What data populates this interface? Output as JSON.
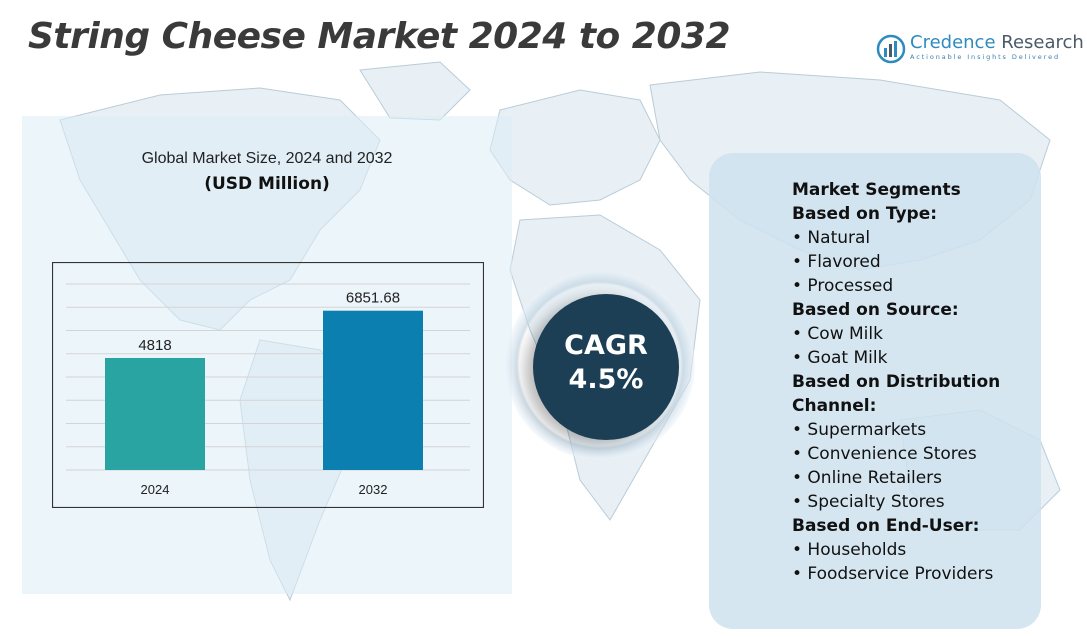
{
  "header": {
    "title": "String Cheese Market 2024 to 2032",
    "logo": {
      "name_part1": "Credence",
      "name_part2": " Research",
      "tagline": "Actionable Insights Delivered"
    }
  },
  "chart_data": {
    "type": "bar",
    "title": "Global Market Size, 2024 and 2032",
    "subtitle": "(USD Million)",
    "categories": [
      "2024",
      "2032"
    ],
    "values": [
      4818,
      6851.68
    ],
    "value_labels": [
      "4818",
      "6851.68"
    ],
    "bar_colors": [
      "#2aa3a3",
      "#0a7fb0"
    ],
    "ylim": [
      0,
      8000
    ],
    "grid": true,
    "xlabel": "",
    "ylabel": ""
  },
  "cagr": {
    "label": "CAGR",
    "value": "4.5%"
  },
  "segments": {
    "title": "Market Segments",
    "groups": [
      {
        "heading": "Based on Type:",
        "items": [
          "• Natural",
          "• Flavored",
          "• Processed"
        ]
      },
      {
        "heading": "Based on Source:",
        "items": [
          "• Cow Milk",
          "• Goat Milk"
        ]
      },
      {
        "heading": "Based on Distribution Channel:",
        "items": [
          "• Supermarkets",
          "• Convenience Stores",
          "• Online Retailers",
          "• Specialty Stores"
        ]
      },
      {
        "heading": "Based on End-User:",
        "items": [
          "• Households",
          "• Foodservice Providers"
        ]
      }
    ]
  },
  "colors": {
    "title": "#3a3a3a",
    "cagr_circle": "#1d3f55",
    "panel": "#cfe3ee",
    "logo": "#2e8bc0"
  }
}
